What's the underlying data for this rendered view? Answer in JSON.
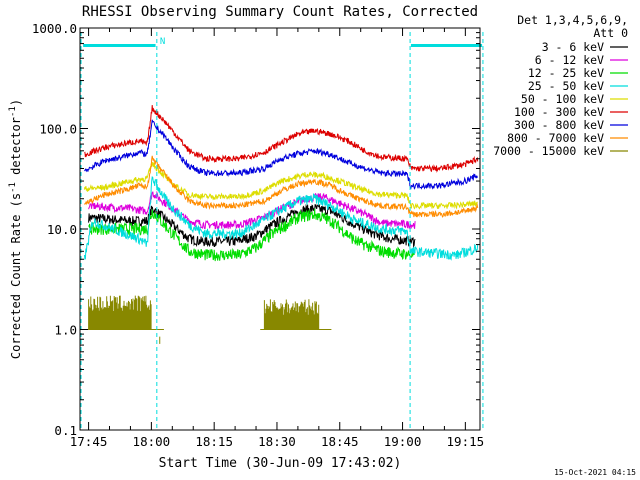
{
  "chart_data": {
    "type": "line",
    "title": "RHESSI Observing Summary Count Rates, Corrected",
    "xlabel": "Start Time (30-Jun-09 17:43:02)",
    "ylabel_prefix": "Corrected Count Rate (s",
    "ylabel_sup": "-1",
    "ylabel_mid": " detector",
    "ylabel_suffix": ")",
    "yscale": "log",
    "ylim": [
      0.1,
      1000
    ],
    "xlim_minutes": [
      -2.05,
      93.5
    ],
    "x_ticks": [
      {
        "label": "17:45",
        "min": 0
      },
      {
        "label": "18:00",
        "min": 15
      },
      {
        "label": "18:15",
        "min": 30
      },
      {
        "label": "18:30",
        "min": 45
      },
      {
        "label": "18:45",
        "min": 60
      },
      {
        "label": "19:00",
        "min": 75
      },
      {
        "label": "19:15",
        "min": 90
      }
    ],
    "y_ticks": [
      {
        "label": "1000.0",
        "value": 1000
      },
      {
        "label": "100.0",
        "value": 100
      },
      {
        "label": "10.0",
        "value": 10
      },
      {
        "label": "1.0",
        "value": 1
      },
      {
        "label": "0.1",
        "value": 0.1
      }
    ],
    "legend_header": [
      "Det 1,3,4,5,6,9,",
      "Att 0"
    ],
    "legend_placement": "right",
    "footer_date": "15-Oct-2021 04:15",
    "annotations": [
      {
        "text": "N",
        "min": 16.3
      }
    ],
    "night_markers_min": [
      -1.8,
      16.3,
      76.8,
      94.2
    ],
    "night_bars": [
      {
        "from": -1.3,
        "to": 16.0,
        "value": 670
      },
      {
        "from": 77.0,
        "to": 94.0,
        "value": 670
      }
    ],
    "series": [
      {
        "name": "3 - 6 keV",
        "color": "#000000",
        "noise": 0.05,
        "points": [
          [
            0,
            13
          ],
          [
            10,
            12
          ],
          [
            14,
            12
          ],
          [
            15.2,
            16
          ],
          [
            20,
            11
          ],
          [
            24,
            8
          ],
          [
            27,
            7.5
          ],
          [
            35,
            7.5
          ],
          [
            40,
            8.5
          ],
          [
            44,
            11
          ],
          [
            50,
            15
          ],
          [
            54,
            16
          ],
          [
            58,
            15
          ],
          [
            62,
            12
          ],
          [
            68,
            9
          ],
          [
            72,
            8
          ],
          [
            78,
            7.5
          ]
        ]
      },
      {
        "name": "6 - 12 keV",
        "color": "#dd00dd",
        "noise": 0.04,
        "points": [
          [
            0,
            17
          ],
          [
            10,
            16
          ],
          [
            14,
            15
          ],
          [
            15.2,
            23
          ],
          [
            20,
            16
          ],
          [
            24,
            12
          ],
          [
            28,
            11
          ],
          [
            36,
            11
          ],
          [
            42,
            13
          ],
          [
            46,
            16
          ],
          [
            52,
            20
          ],
          [
            56,
            21
          ],
          [
            60,
            18
          ],
          [
            66,
            14
          ],
          [
            70,
            11.5
          ],
          [
            78,
            11
          ]
        ]
      },
      {
        "name": "12 - 25 keV",
        "color": "#00dd00",
        "noise": 0.06,
        "points": [
          [
            0,
            10
          ],
          [
            10,
            10
          ],
          [
            14,
            10
          ],
          [
            15.2,
            15
          ],
          [
            20,
            9
          ],
          [
            24,
            6
          ],
          [
            28,
            5.5
          ],
          [
            36,
            5.5
          ],
          [
            40,
            6.5
          ],
          [
            44,
            9
          ],
          [
            50,
            13
          ],
          [
            54,
            14
          ],
          [
            58,
            12
          ],
          [
            64,
            7.5
          ],
          [
            70,
            6
          ],
          [
            78,
            5.5
          ]
        ]
      },
      {
        "name": "25 - 50 keV",
        "color": "#00dddd",
        "noise": 0.05,
        "points": [
          [
            -1,
            5
          ],
          [
            1,
            12
          ],
          [
            6,
            10
          ],
          [
            12,
            8
          ],
          [
            14,
            7
          ],
          [
            15.2,
            32
          ],
          [
            19,
            18
          ],
          [
            24,
            11
          ],
          [
            28,
            9
          ],
          [
            36,
            9
          ],
          [
            40,
            11
          ],
          [
            44,
            14
          ],
          [
            50,
            19
          ],
          [
            54,
            20
          ],
          [
            58,
            17
          ],
          [
            64,
            12
          ],
          [
            70,
            10
          ],
          [
            76,
            9.5
          ],
          [
            77,
            6
          ],
          [
            88,
            5.5
          ],
          [
            93,
            6.5
          ]
        ]
      },
      {
        "name": "50 - 100 keV",
        "color": "#dddd00",
        "noise": 0.03,
        "points": [
          [
            -1,
            25
          ],
          [
            4,
            26
          ],
          [
            10,
            30
          ],
          [
            14,
            32
          ],
          [
            15.2,
            45
          ],
          [
            20,
            28
          ],
          [
            24,
            22
          ],
          [
            28,
            21
          ],
          [
            36,
            21
          ],
          [
            42,
            24
          ],
          [
            46,
            30
          ],
          [
            52,
            35
          ],
          [
            56,
            34
          ],
          [
            60,
            30
          ],
          [
            66,
            24
          ],
          [
            70,
            22
          ],
          [
            76,
            21.5
          ],
          [
            77,
            17
          ],
          [
            85,
            17
          ],
          [
            90,
            17.5
          ],
          [
            93,
            18
          ]
        ]
      },
      {
        "name": "100 - 300 keV",
        "color": "#dd0000",
        "noise": 0.03,
        "points": [
          [
            -1,
            55
          ],
          [
            4,
            65
          ],
          [
            8,
            70
          ],
          [
            12,
            75
          ],
          [
            14,
            70
          ],
          [
            15.2,
            160
          ],
          [
            18,
            120
          ],
          [
            21,
            85
          ],
          [
            24,
            60
          ],
          [
            28,
            50
          ],
          [
            36,
            50
          ],
          [
            42,
            58
          ],
          [
            46,
            72
          ],
          [
            50,
            88
          ],
          [
            54,
            95
          ],
          [
            58,
            88
          ],
          [
            62,
            75
          ],
          [
            66,
            60
          ],
          [
            70,
            52
          ],
          [
            76,
            50
          ],
          [
            77,
            40
          ],
          [
            84,
            40
          ],
          [
            90,
            44
          ],
          [
            93,
            50
          ]
        ]
      },
      {
        "name": "300 - 800 keV",
        "color": "#0000dd",
        "noise": 0.03,
        "points": [
          [
            -1,
            38
          ],
          [
            4,
            48
          ],
          [
            8,
            52
          ],
          [
            12,
            58
          ],
          [
            14,
            55
          ],
          [
            15.2,
            115
          ],
          [
            18,
            85
          ],
          [
            21,
            58
          ],
          [
            24,
            42
          ],
          [
            28,
            36
          ],
          [
            36,
            36
          ],
          [
            42,
            40
          ],
          [
            46,
            50
          ],
          [
            50,
            56
          ],
          [
            54,
            60
          ],
          [
            58,
            55
          ],
          [
            62,
            46
          ],
          [
            66,
            40
          ],
          [
            70,
            36
          ],
          [
            76,
            35
          ],
          [
            77,
            27
          ],
          [
            84,
            27
          ],
          [
            90,
            30
          ],
          [
            93,
            34
          ]
        ]
      },
      {
        "name": "800 - 7000 keV",
        "color": "#ff8c00",
        "noise": 0.03,
        "points": [
          [
            -1,
            18
          ],
          [
            4,
            22
          ],
          [
            8,
            24
          ],
          [
            12,
            27
          ],
          [
            14,
            26
          ],
          [
            15.2,
            50
          ],
          [
            18,
            36
          ],
          [
            21,
            25
          ],
          [
            24,
            19
          ],
          [
            28,
            17
          ],
          [
            36,
            17
          ],
          [
            42,
            19
          ],
          [
            46,
            24
          ],
          [
            50,
            28
          ],
          [
            54,
            30
          ],
          [
            58,
            27
          ],
          [
            62,
            22
          ],
          [
            66,
            19
          ],
          [
            70,
            17
          ],
          [
            76,
            16.5
          ],
          [
            77,
            14
          ],
          [
            84,
            14
          ],
          [
            90,
            15
          ],
          [
            93,
            16.5
          ]
        ]
      },
      {
        "name": "7000 - 15000 keV",
        "color": "#888800",
        "noise": 0,
        "points": [],
        "bursts": [
          [
            0,
            15,
            1,
            2.2
          ],
          [
            42,
            55,
            1,
            2
          ]
        ]
      }
    ]
  }
}
